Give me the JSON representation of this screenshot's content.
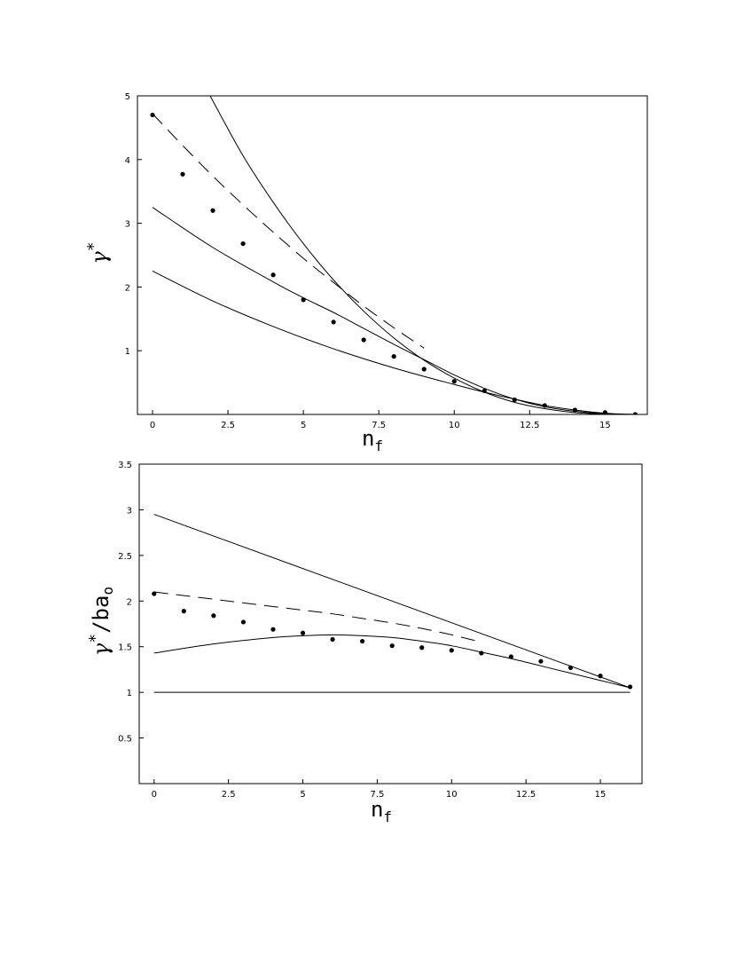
{
  "chart_data": [
    {
      "type": "scatter",
      "xlabel": "n_f",
      "ylabel": "γ*",
      "xlabel_main": "n",
      "xlabel_sub": "f",
      "ylabel_main": "γ",
      "ylabel_sup": "*",
      "xlim": [
        -0.5,
        16.4
      ],
      "ylim": [
        0,
        5
      ],
      "xticks": [
        0,
        2.5,
        5,
        7.5,
        10,
        12.5,
        15
      ],
      "xtick_labels": [
        "0",
        "2.5",
        "5",
        "7.5",
        "10",
        "12.5",
        "15"
      ],
      "yticks": [
        1,
        2,
        3,
        4,
        5
      ],
      "ytick_labels": [
        "1",
        "2",
        "3",
        "4",
        "5"
      ],
      "grid": false,
      "series": [
        {
          "style": "solid",
          "x": [
            1.8,
            2,
            3,
            4,
            5,
            6,
            7,
            8,
            9,
            10,
            11,
            12,
            13,
            14,
            15,
            16
          ],
          "values": [
            5.1,
            4.92,
            4.06,
            3.33,
            2.68,
            2.11,
            1.62,
            1.2,
            0.85,
            0.57,
            0.35,
            0.19,
            0.09,
            0.03,
            0.006,
            0.0
          ]
        },
        {
          "style": "solid",
          "x": [
            0,
            2,
            4,
            5,
            6,
            7,
            8,
            9,
            10,
            11,
            12,
            13,
            14,
            15,
            16
          ],
          "values": [
            3.25,
            2.62,
            2.08,
            1.83,
            1.6,
            1.35,
            1.1,
            0.86,
            0.62,
            0.41,
            0.24,
            0.12,
            0.05,
            0.01,
            0.0
          ]
        },
        {
          "style": "solid",
          "x": [
            0,
            2,
            4,
            6,
            8,
            10,
            11,
            12,
            13,
            14,
            15,
            16
          ],
          "values": [
            2.25,
            1.78,
            1.38,
            1.03,
            0.73,
            0.47,
            0.35,
            0.24,
            0.14,
            0.07,
            0.02,
            0.0
          ]
        },
        {
          "style": "dashed",
          "x": [
            0,
            1,
            2,
            3,
            4,
            5,
            6,
            7,
            8,
            9
          ],
          "values": [
            4.72,
            4.22,
            3.74,
            3.29,
            2.86,
            2.45,
            2.07,
            1.7,
            1.36,
            1.04
          ]
        },
        {
          "style": "points",
          "x": [
            0,
            1,
            2,
            3,
            4,
            5,
            6,
            7,
            8,
            9,
            10,
            11,
            12,
            13,
            14,
            15,
            16
          ],
          "values": [
            4.7,
            3.77,
            3.2,
            2.68,
            2.19,
            1.8,
            1.45,
            1.17,
            0.91,
            0.71,
            0.52,
            0.37,
            0.23,
            0.14,
            0.07,
            0.03,
            0.0
          ]
        }
      ]
    },
    {
      "type": "scatter",
      "xlabel": "n_f",
      "ylabel": "γ*/ba₀",
      "xlabel_main": "n",
      "xlabel_sub": "f",
      "ylabel_main": "γ",
      "ylabel_sup": "*",
      "ylabel_rest": "/ba",
      "ylabel_sub": "o",
      "xlim": [
        -0.5,
        16.4
      ],
      "ylim": [
        0,
        3.5
      ],
      "xticks": [
        0,
        2.5,
        5,
        7.5,
        10,
        12.5,
        15
      ],
      "xtick_labels": [
        "0",
        "2.5",
        "5",
        "7.5",
        "10",
        "12.5",
        "15"
      ],
      "yticks": [
        0.5,
        1,
        1.5,
        2,
        2.5,
        3,
        3.5
      ],
      "ytick_labels": [
        "0.5",
        "1",
        "1.5",
        "2",
        "2.5",
        "3",
        "3.5"
      ],
      "grid": false,
      "series": [
        {
          "style": "solid",
          "x": [
            0,
            16
          ],
          "values": [
            2.95,
            1.05
          ]
        },
        {
          "style": "solid",
          "x": [
            0,
            2,
            4,
            5,
            6,
            7,
            8,
            9,
            10,
            11,
            12,
            13,
            14,
            15,
            16
          ],
          "values": [
            1.43,
            1.53,
            1.6,
            1.62,
            1.63,
            1.62,
            1.6,
            1.56,
            1.51,
            1.44,
            1.37,
            1.29,
            1.21,
            1.13,
            1.05
          ]
        },
        {
          "style": "solid",
          "x": [
            0,
            16
          ],
          "values": [
            1.0,
            1.0
          ]
        },
        {
          "style": "dashed",
          "x": [
            0,
            1,
            2,
            3,
            4,
            5,
            6,
            7,
            8,
            9,
            10,
            11
          ],
          "values": [
            2.1,
            2.06,
            2.02,
            1.98,
            1.94,
            1.9,
            1.86,
            1.81,
            1.76,
            1.7,
            1.63,
            1.55
          ]
        },
        {
          "style": "points",
          "x": [
            0,
            1,
            2,
            3,
            4,
            5,
            6,
            7,
            8,
            9,
            10,
            11,
            12,
            13,
            14,
            15,
            16
          ],
          "values": [
            2.08,
            1.89,
            1.84,
            1.77,
            1.69,
            1.65,
            1.58,
            1.56,
            1.51,
            1.49,
            1.46,
            1.43,
            1.39,
            1.34,
            1.27,
            1.18,
            1.06
          ]
        }
      ]
    }
  ]
}
